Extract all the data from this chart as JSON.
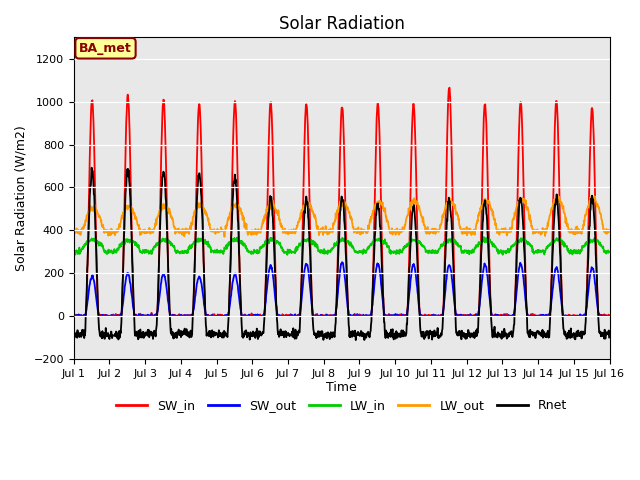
{
  "title": "Solar Radiation",
  "ylabel": "Solar Radiation (W/m2)",
  "xlabel": "Time",
  "ylim": [
    -200,
    1300
  ],
  "yticks": [
    -200,
    0,
    200,
    400,
    600,
    800,
    1000,
    1200
  ],
  "xtick_labels": [
    "Jul 1",
    "Jul 2",
    "Jul 3",
    "Jul 4",
    "Jul 5",
    "Jul 6",
    "Jul 7",
    "Jul 8",
    "Jul 9",
    "Jul 10",
    "Jul 11",
    "Jul 12",
    "Jul 13",
    "Jul 14",
    "Jul 15",
    "Jul 16"
  ],
  "colors": {
    "SW_in": "#ff0000",
    "SW_out": "#0000ff",
    "LW_in": "#00cc00",
    "LW_out": "#ff9900",
    "Rnet": "#000000"
  },
  "annotation_text": "BA_met",
  "annotation_color": "#8b0000",
  "annotation_bg": "#ffff99",
  "n_days": 15,
  "dt_hours": 0.25,
  "SW_in_peaks": [
    1010,
    1030,
    1010,
    990,
    1000,
    1000,
    990,
    980,
    990,
    985,
    1065,
    990,
    1000,
    1005,
    970
  ],
  "SW_out_peaks": [
    185,
    200,
    195,
    185,
    195,
    235,
    245,
    250,
    245,
    240,
    240,
    240,
    245,
    225,
    225
  ],
  "LW_in_base": 310,
  "LW_in_amp": 45,
  "LW_in_night_dip": 10,
  "LW_out_base": 395,
  "LW_out_amp_early": 110,
  "LW_out_amp_late": 155,
  "Rnet_day_peaks": [
    670,
    690,
    680,
    665,
    650,
    550,
    545,
    555,
    525,
    510,
    540,
    530,
    545,
    550,
    555
  ],
  "Rnet_night": -85,
  "background_color": "#e8e8e8",
  "grid_color": "#ffffff",
  "linewidth": 1.3,
  "figsize": [
    6.4,
    4.8
  ],
  "dpi": 100
}
